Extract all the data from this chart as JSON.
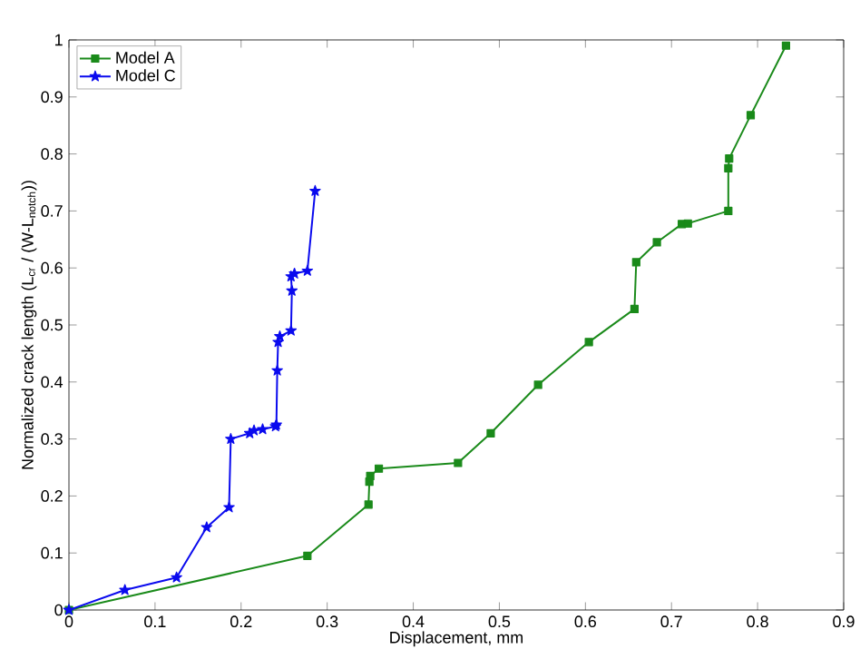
{
  "chart_data": {
    "type": "line",
    "xlabel": "Displacement, mm",
    "ylabel": "Normalized crack length (L$_{cr}$ / (W-L$_{notch}$))",
    "xlim": [
      0,
      0.9
    ],
    "ylim": [
      0,
      1
    ],
    "xticks": [
      0,
      0.1,
      0.2,
      0.3,
      0.4,
      0.5,
      0.6,
      0.7,
      0.8,
      0.9
    ],
    "yticks": [
      0,
      0.1,
      0.2,
      0.3,
      0.4,
      0.5,
      0.6,
      0.7,
      0.8,
      0.9,
      1
    ],
    "legend": "top left",
    "grid": false,
    "line_style": "solid",
    "series": [
      {
        "name": "Model A",
        "color": "#1a8a1a",
        "marker": "square",
        "x": [
          0,
          0.277,
          0.348,
          0.349,
          0.35,
          0.36,
          0.452,
          0.49,
          0.545,
          0.604,
          0.657,
          0.659,
          0.683,
          0.712,
          0.719,
          0.766,
          0.766,
          0.767,
          0.792,
          0.833
        ],
        "values": [
          0,
          0.095,
          0.185,
          0.225,
          0.235,
          0.248,
          0.258,
          0.31,
          0.395,
          0.47,
          0.528,
          0.61,
          0.645,
          0.677,
          0.678,
          0.7,
          0.775,
          0.792,
          0.868,
          0.99
        ]
      },
      {
        "name": "Model C",
        "color": "#0a0aee",
        "marker": "star",
        "x": [
          0,
          0.065,
          0.125,
          0.16,
          0.186,
          0.188,
          0.21,
          0.215,
          0.225,
          0.24,
          0.241,
          0.242,
          0.243,
          0.245,
          0.258,
          0.259,
          0.258,
          0.262,
          0.277,
          0.286
        ],
        "values": [
          0,
          0.035,
          0.057,
          0.145,
          0.18,
          0.3,
          0.31,
          0.315,
          0.317,
          0.322,
          0.325,
          0.42,
          0.47,
          0.48,
          0.49,
          0.56,
          0.585,
          0.59,
          0.595,
          0.735
        ]
      }
    ]
  }
}
